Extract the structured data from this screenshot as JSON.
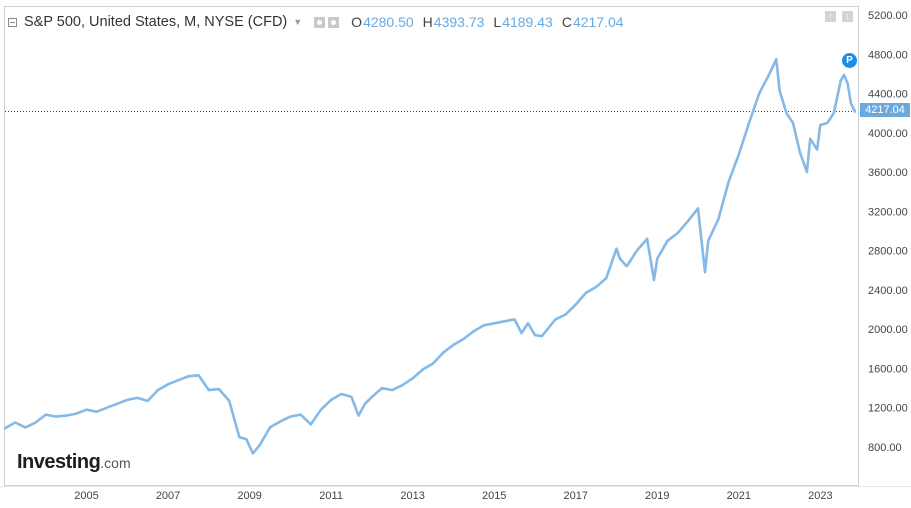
{
  "header": {
    "title": "S&P 500, United States, M, NYSE (CFD)",
    "open_key": "O",
    "open": "4280.50",
    "high_key": "H",
    "high": "4393.73",
    "low_key": "L",
    "low": "4189.43",
    "close_key": "C",
    "close": "4217.04"
  },
  "last_price_label": "4217.04",
  "marker_label": "P",
  "logo": {
    "main": "Investing",
    "domain": ".com"
  },
  "colors": {
    "line": "#85b9e6",
    "accent": "#6aa9dd",
    "badge": "#1a8fe3",
    "text": "#444444"
  },
  "icons": [
    "collapse-icon",
    "settings-icon",
    "up-arrow-icon",
    "down-arrow-icon"
  ],
  "chart_data": {
    "type": "line",
    "title": "S&P 500, United States, M, NYSE (CFD)",
    "xlabel": "",
    "ylabel": "",
    "xlim": [
      2003.0,
      2023.85
    ],
    "ylim": [
      460,
      5300
    ],
    "y_ticks": [
      800,
      1200,
      1600,
      2000,
      2400,
      2800,
      3200,
      3600,
      4000,
      4400,
      4800,
      5200
    ],
    "y_tick_labels": [
      "800.00",
      "1200.00",
      "1600.00",
      "2000.00",
      "2400.00",
      "2800.00",
      "3200.00",
      "3600.00",
      "4000.00",
      "4400.00",
      "4800.00",
      "5200.00"
    ],
    "x_ticks": [
      2005,
      2007,
      2009,
      2011,
      2013,
      2015,
      2017,
      2019,
      2021,
      2023
    ],
    "x_tick_labels": [
      "2005",
      "2007",
      "2009",
      "2011",
      "2013",
      "2015",
      "2017",
      "2019",
      "2021",
      "2023"
    ],
    "grid": false,
    "last_value": 4217.04,
    "series": [
      {
        "x": [
          2003.0,
          2003.25,
          2003.5,
          2003.75,
          2004.0,
          2004.25,
          2004.5,
          2004.75,
          2005.0,
          2005.25,
          2005.5,
          2005.75,
          2006.0,
          2006.25,
          2006.5,
          2006.75,
          2007.0,
          2007.25,
          2007.5,
          2007.75,
          2008.0,
          2008.25,
          2008.5,
          2008.75,
          2008.92,
          2009.08,
          2009.25,
          2009.5,
          2009.75,
          2010.0,
          2010.25,
          2010.5,
          2010.75,
          2011.0,
          2011.25,
          2011.5,
          2011.67,
          2011.83,
          2012.0,
          2012.25,
          2012.5,
          2012.75,
          2013.0,
          2013.25,
          2013.5,
          2013.75,
          2014.0,
          2014.25,
          2014.5,
          2014.75,
          2015.0,
          2015.25,
          2015.5,
          2015.67,
          2015.83,
          2016.0,
          2016.17,
          2016.5,
          2016.75,
          2017.0,
          2017.25,
          2017.5,
          2017.75,
          2018.0,
          2018.08,
          2018.25,
          2018.5,
          2018.75,
          2018.92,
          2019.0,
          2019.25,
          2019.5,
          2019.75,
          2020.0,
          2020.17,
          2020.25,
          2020.5,
          2020.75,
          2021.0,
          2021.25,
          2021.5,
          2021.75,
          2021.92,
          2022.0,
          2022.17,
          2022.33,
          2022.5,
          2022.67,
          2022.75,
          2022.92,
          2023.0,
          2023.17,
          2023.33,
          2023.5,
          2023.58,
          2023.67,
          2023.75,
          2023.85
        ],
        "y": [
          990,
          1050,
          1000,
          1050,
          1130,
          1110,
          1120,
          1140,
          1180,
          1160,
          1200,
          1240,
          1280,
          1300,
          1270,
          1380,
          1440,
          1480,
          1520,
          1530,
          1380,
          1390,
          1270,
          900,
          880,
          735,
          820,
          1000,
          1060,
          1110,
          1130,
          1030,
          1180,
          1280,
          1340,
          1310,
          1120,
          1240,
          1310,
          1400,
          1380,
          1430,
          1500,
          1590,
          1650,
          1760,
          1840,
          1900,
          1980,
          2040,
          2060,
          2080,
          2100,
          1960,
          2060,
          1940,
          1930,
          2100,
          2150,
          2250,
          2370,
          2430,
          2520,
          2820,
          2720,
          2640,
          2800,
          2920,
          2500,
          2720,
          2900,
          2980,
          3100,
          3230,
          2580,
          2900,
          3120,
          3500,
          3780,
          4100,
          4400,
          4600,
          4750,
          4430,
          4200,
          4100,
          3800,
          3600,
          3940,
          3830,
          4080,
          4100,
          4200,
          4530,
          4590,
          4500,
          4300,
          4217.04
        ]
      }
    ]
  }
}
